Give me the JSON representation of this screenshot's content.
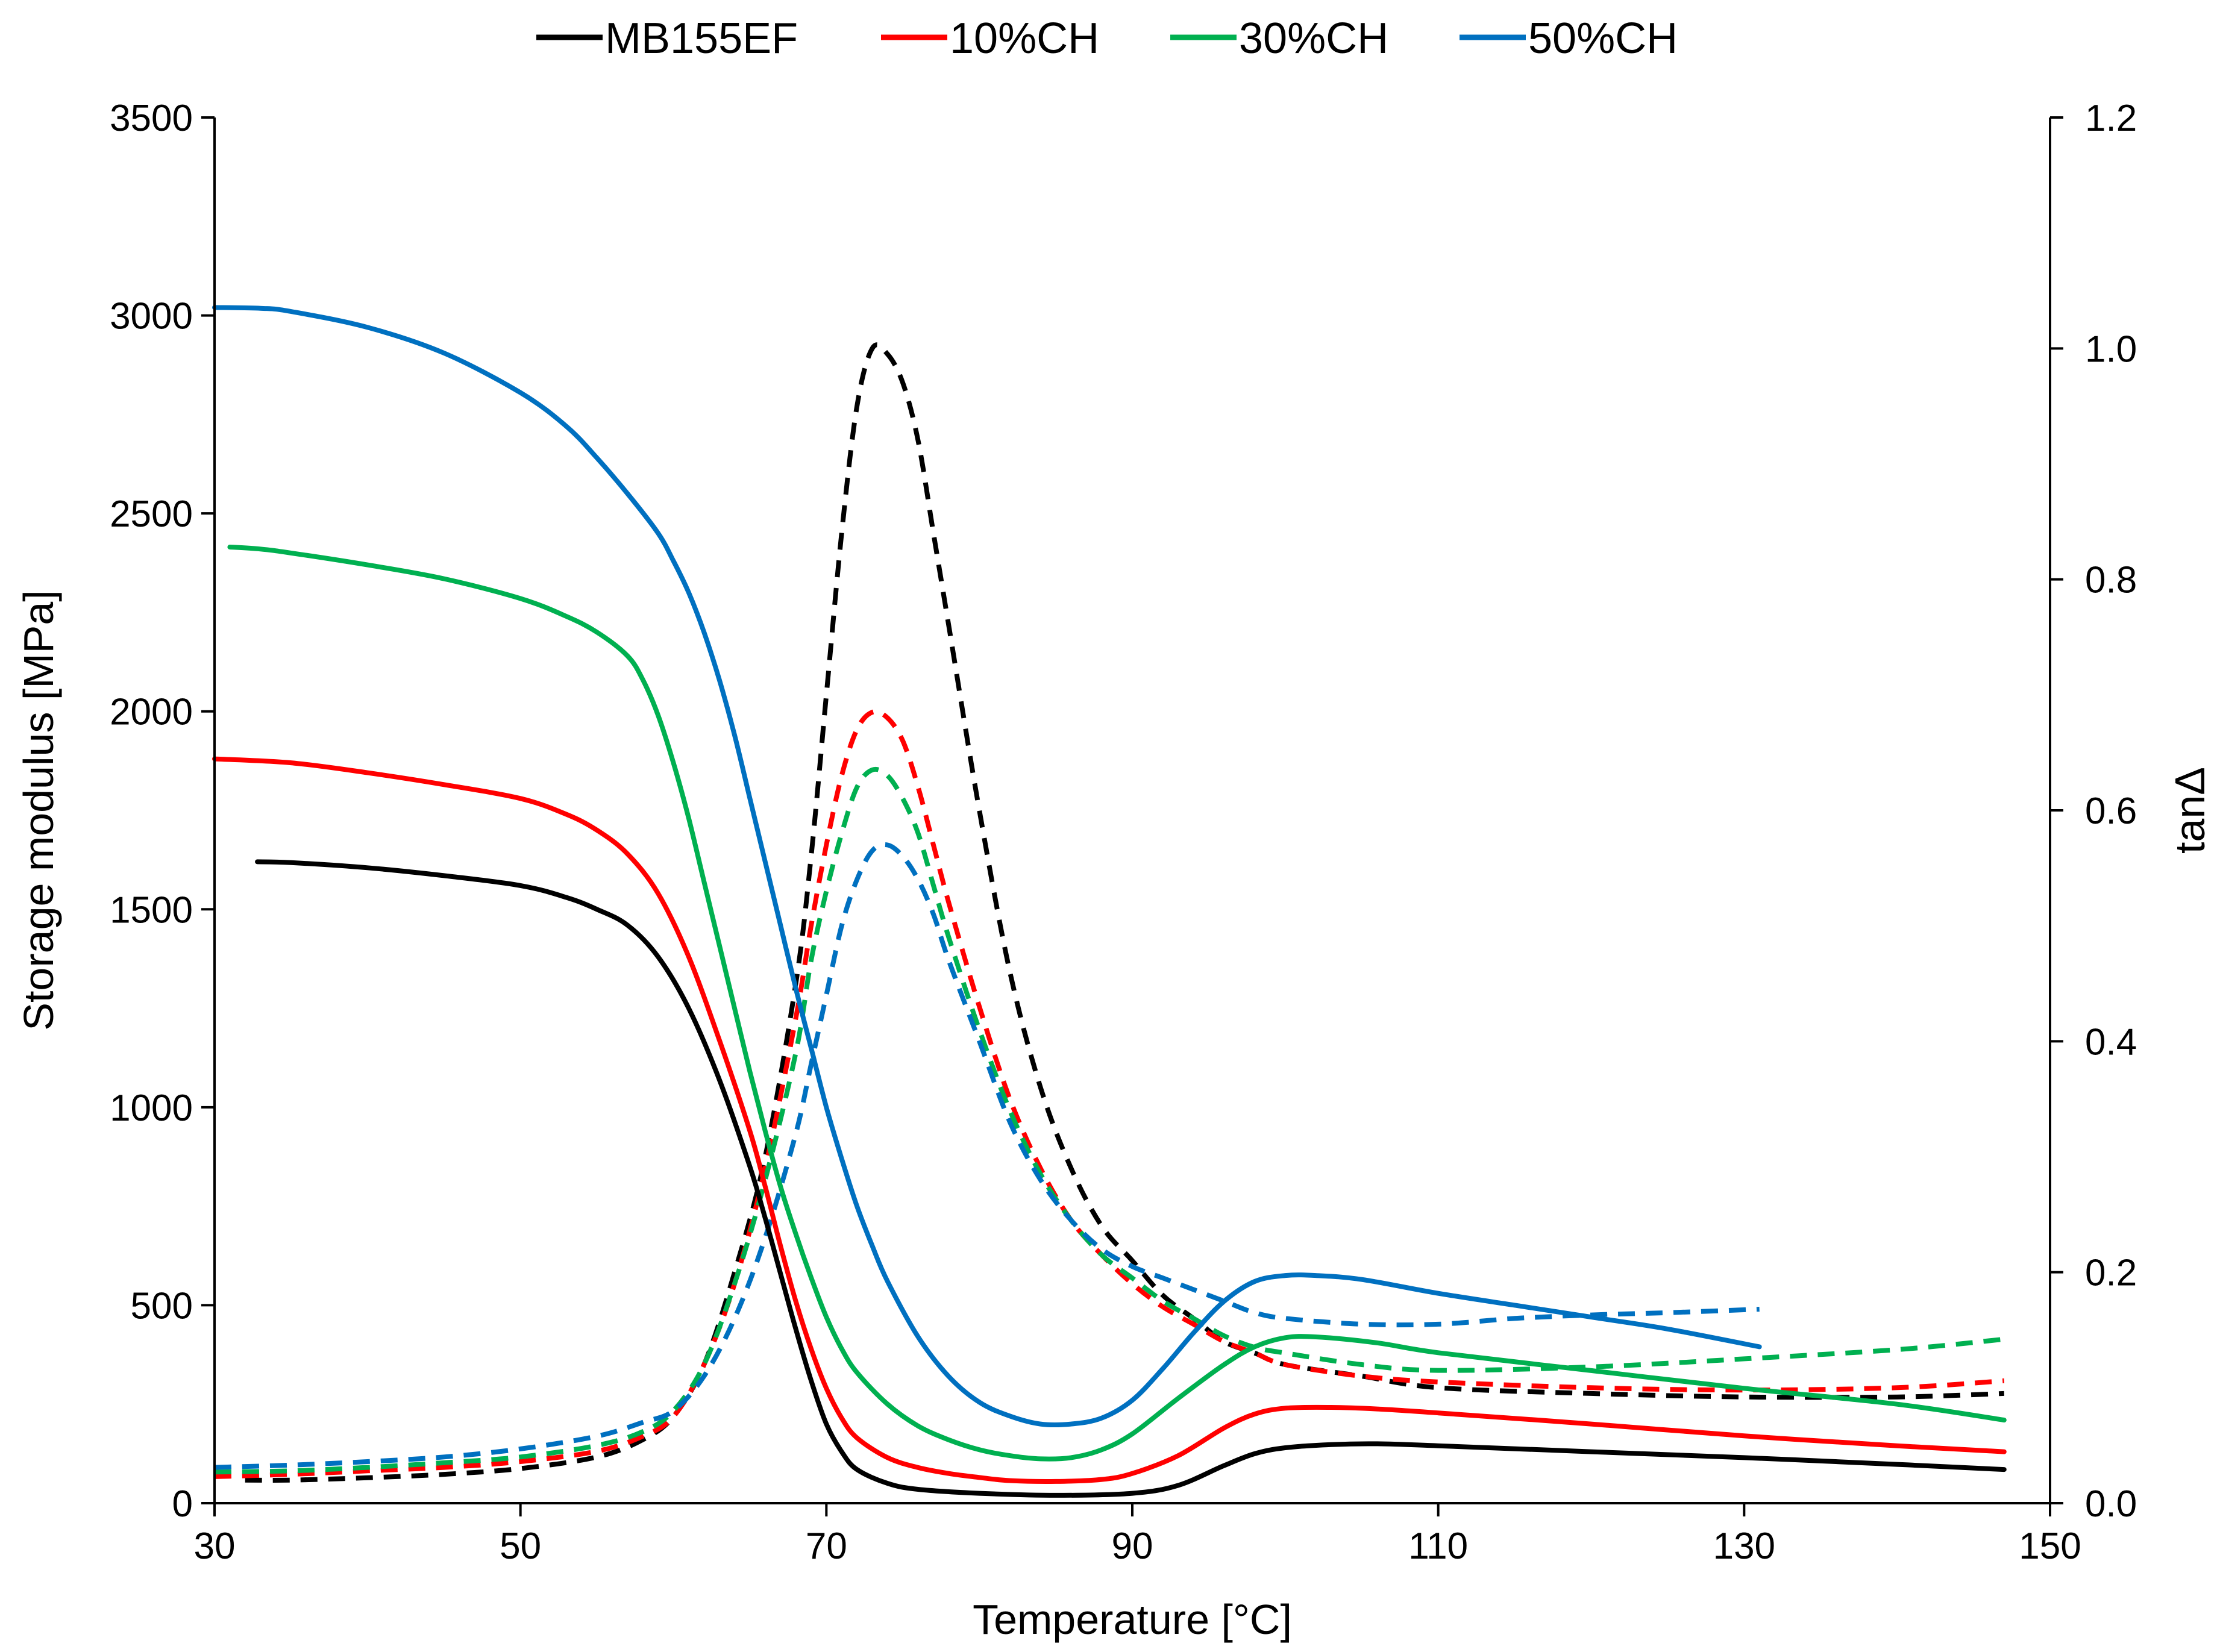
{
  "chart_data": {
    "type": "line",
    "title": "",
    "xlabel": "Temperature [°C]",
    "ylabel": "Storage modulus [MPa]",
    "y2label": "tanΔ",
    "xlim": [
      30,
      150
    ],
    "ylim": [
      0,
      3500
    ],
    "y2lim": [
      0,
      1.2
    ],
    "xticks": [
      30,
      50,
      70,
      90,
      110,
      130,
      150
    ],
    "yticks": [
      0,
      500,
      1000,
      1500,
      2000,
      2500,
      3000,
      3500
    ],
    "y2ticks": [
      "0.0",
      "0.2",
      "0.4",
      "0.6",
      "0.8",
      "1.0",
      "1.2"
    ],
    "grid": false,
    "legend_position": "top",
    "line_style_note": "solid = storage modulus (left axis), dashed = tanΔ (right axis)",
    "series": [
      {
        "name": "MB155EF",
        "color": "#000000",
        "storage_modulus": {
          "x": [
            32.8,
            35,
            40,
            45,
            50,
            53,
            55,
            57,
            59,
            61,
            63,
            65,
            66,
            67,
            68,
            69,
            70,
            71,
            72,
            74,
            76,
            80,
            85,
            90,
            93,
            96,
            98,
            100,
            103,
            106,
            110,
            120,
            130,
            140,
            147
          ],
          "y": [
            1620,
            1618,
            1605,
            1585,
            1560,
            1530,
            1500,
            1460,
            1380,
            1250,
            1070,
            850,
            720,
            580,
            440,
            310,
            200,
            130,
            85,
            50,
            35,
            25,
            20,
            25,
            45,
            95,
            125,
            140,
            148,
            150,
            145,
            130,
            115,
            98,
            85
          ]
        },
        "tan_delta": {
          "x": [
            32,
            35,
            40,
            45,
            50,
            55,
            58,
            60,
            62,
            64,
            66,
            68,
            69,
            70,
            71,
            72,
            73,
            74,
            75,
            76,
            77,
            78,
            80,
            82,
            84,
            86,
            88,
            90,
            92,
            94,
            96,
            98,
            100,
            105,
            110,
            120,
            130,
            140,
            147
          ],
          "y": [
            0.02,
            0.02,
            0.022,
            0.025,
            0.03,
            0.04,
            0.055,
            0.075,
            0.12,
            0.2,
            0.3,
            0.45,
            0.56,
            0.7,
            0.84,
            0.95,
            1.0,
            0.995,
            0.97,
            0.92,
            0.84,
            0.76,
            0.6,
            0.46,
            0.36,
            0.29,
            0.24,
            0.21,
            0.18,
            0.16,
            0.14,
            0.13,
            0.12,
            0.11,
            0.1,
            0.095,
            0.092,
            0.092,
            0.095
          ]
        }
      },
      {
        "name": "10%CH",
        "color": "#ff0000",
        "storage_modulus": {
          "x": [
            30,
            35,
            40,
            45,
            50,
            53,
            55,
            57,
            59,
            61,
            63,
            65,
            66,
            67,
            68,
            69,
            70,
            71,
            72,
            74,
            76,
            78,
            80,
            82,
            85,
            88,
            90,
            93,
            96,
            98,
            100,
            103,
            106,
            110,
            120,
            130,
            140,
            147
          ],
          "y": [
            1880,
            1870,
            1845,
            1815,
            1780,
            1740,
            1700,
            1640,
            1540,
            1380,
            1170,
            940,
            800,
            650,
            510,
            390,
            290,
            215,
            165,
            115,
            90,
            75,
            65,
            57,
            55,
            60,
            75,
            120,
            190,
            225,
            240,
            242,
            238,
            228,
            200,
            170,
            145,
            130
          ]
        },
        "tan_delta": {
          "x": [
            30,
            35,
            40,
            45,
            50,
            55,
            58,
            60,
            62,
            64,
            66,
            68,
            69,
            70,
            71,
            72,
            73,
            74,
            75,
            76,
            77,
            78,
            80,
            82,
            84,
            86,
            88,
            90,
            92,
            94,
            96,
            98,
            100,
            105,
            110,
            120,
            130,
            140,
            147
          ],
          "y": [
            0.023,
            0.025,
            0.028,
            0.031,
            0.036,
            0.045,
            0.058,
            0.075,
            0.12,
            0.19,
            0.29,
            0.42,
            0.5,
            0.57,
            0.63,
            0.67,
            0.685,
            0.68,
            0.66,
            0.62,
            0.57,
            0.52,
            0.43,
            0.35,
            0.29,
            0.245,
            0.215,
            0.19,
            0.17,
            0.155,
            0.14,
            0.13,
            0.12,
            0.11,
            0.105,
            0.1,
            0.098,
            0.1,
            0.106
          ]
        }
      },
      {
        "name": "30%CH",
        "color": "#00b050",
        "storage_modulus": {
          "x": [
            31,
            33,
            35,
            40,
            45,
            50,
            53,
            55,
            57,
            58,
            59,
            60,
            61,
            62,
            63,
            64,
            65,
            66,
            67,
            68,
            69,
            70,
            71,
            72,
            74,
            76,
            78,
            80,
            82,
            84,
            86,
            88,
            90,
            93,
            96,
            98,
            100,
            102,
            106,
            110,
            120,
            130,
            140,
            147
          ],
          "y": [
            2415,
            2410,
            2400,
            2370,
            2335,
            2285,
            2240,
            2200,
            2140,
            2080,
            1990,
            1870,
            1730,
            1570,
            1410,
            1250,
            1090,
            940,
            800,
            680,
            570,
            470,
            390,
            330,
            250,
            195,
            160,
            135,
            120,
            112,
            115,
            135,
            175,
            265,
            350,
            395,
            418,
            420,
            405,
            380,
            335,
            290,
            250,
            210
          ]
        },
        "tan_delta": {
          "x": [
            30,
            35,
            40,
            45,
            50,
            55,
            58,
            60,
            62,
            64,
            66,
            68,
            69,
            70,
            71,
            72,
            73,
            74,
            75,
            76,
            77,
            78,
            80,
            82,
            84,
            86,
            88,
            90,
            92,
            94,
            96,
            98,
            100,
            105,
            110,
            120,
            130,
            140,
            147
          ],
          "y": [
            0.027,
            0.028,
            0.031,
            0.035,
            0.04,
            0.05,
            0.062,
            0.08,
            0.12,
            0.19,
            0.28,
            0.39,
            0.47,
            0.53,
            0.58,
            0.62,
            0.635,
            0.63,
            0.61,
            0.58,
            0.535,
            0.49,
            0.41,
            0.34,
            0.285,
            0.245,
            0.215,
            0.195,
            0.175,
            0.16,
            0.145,
            0.135,
            0.13,
            0.12,
            0.115,
            0.118,
            0.125,
            0.133,
            0.142
          ]
        }
      },
      {
        "name": "50%CH",
        "color": "#0070c0",
        "storage_modulus": {
          "x": [
            30,
            33,
            35,
            40,
            45,
            50,
            53,
            55,
            57,
            59,
            60,
            61,
            62,
            63,
            64,
            65,
            66,
            67,
            68,
            69,
            70,
            71,
            72,
            73,
            74,
            76,
            78,
            80,
            82,
            84,
            86,
            88,
            90,
            92,
            94,
            96,
            98,
            100,
            102,
            105,
            110,
            115,
            120,
            125,
            131
          ],
          "y": [
            3020,
            3018,
            3010,
            2970,
            2905,
            2805,
            2720,
            2640,
            2550,
            2450,
            2380,
            2300,
            2200,
            2080,
            1940,
            1780,
            1620,
            1460,
            1300,
            1150,
            1000,
            870,
            750,
            650,
            560,
            420,
            320,
            255,
            220,
            200,
            200,
            215,
            260,
            340,
            430,
            510,
            560,
            575,
            575,
            565,
            530,
            500,
            470,
            440,
            395
          ]
        },
        "tan_delta": {
          "x": [
            30,
            35,
            40,
            45,
            50,
            55,
            58,
            60,
            62,
            64,
            66,
            68,
            69,
            70,
            71,
            72,
            73,
            74,
            75,
            76,
            77,
            78,
            80,
            82,
            84,
            86,
            88,
            90,
            92,
            94,
            96,
            98,
            100,
            105,
            110,
            115,
            120,
            125,
            131
          ],
          "y": [
            0.031,
            0.033,
            0.036,
            0.04,
            0.047,
            0.058,
            0.07,
            0.08,
            0.11,
            0.16,
            0.23,
            0.32,
            0.38,
            0.44,
            0.5,
            0.54,
            0.565,
            0.57,
            0.56,
            0.54,
            0.51,
            0.47,
            0.4,
            0.33,
            0.28,
            0.245,
            0.22,
            0.205,
            0.195,
            0.185,
            0.175,
            0.165,
            0.16,
            0.155,
            0.155,
            0.16,
            0.163,
            0.165,
            0.168
          ]
        }
      }
    ]
  }
}
